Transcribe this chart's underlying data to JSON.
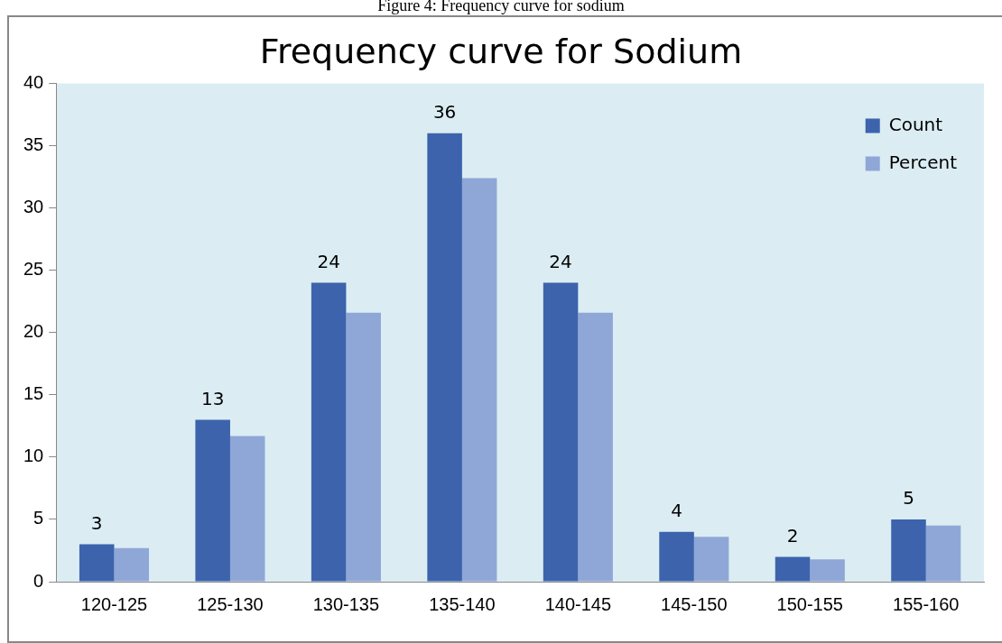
{
  "chart_data": {
    "type": "bar",
    "title": "Frequency curve for Sodium",
    "annotations": [
      "Figure 4: Frequency curve for sodium"
    ],
    "categories": [
      "120-125",
      "125-130",
      "130-135",
      "135-140",
      "140-145",
      "145-150",
      "150-155",
      "155-160"
    ],
    "series": [
      {
        "name": "Count",
        "color": "#3c63ac",
        "values": [
          3,
          13,
          24,
          36,
          24,
          4,
          2,
          5
        ],
        "value_labels": [
          "3",
          "13",
          "24",
          "36",
          "24",
          "4",
          "2",
          "5"
        ]
      },
      {
        "name": "Percent",
        "color": "#8fa7d7",
        "values": [
          2.7,
          11.7,
          21.6,
          32.4,
          21.6,
          3.6,
          1.8,
          4.5
        ]
      }
    ],
    "ylim": [
      0,
      40
    ],
    "yticks": [
      0,
      5,
      10,
      15,
      20,
      25,
      30,
      35,
      40
    ],
    "grid": false,
    "legend": "top right"
  }
}
